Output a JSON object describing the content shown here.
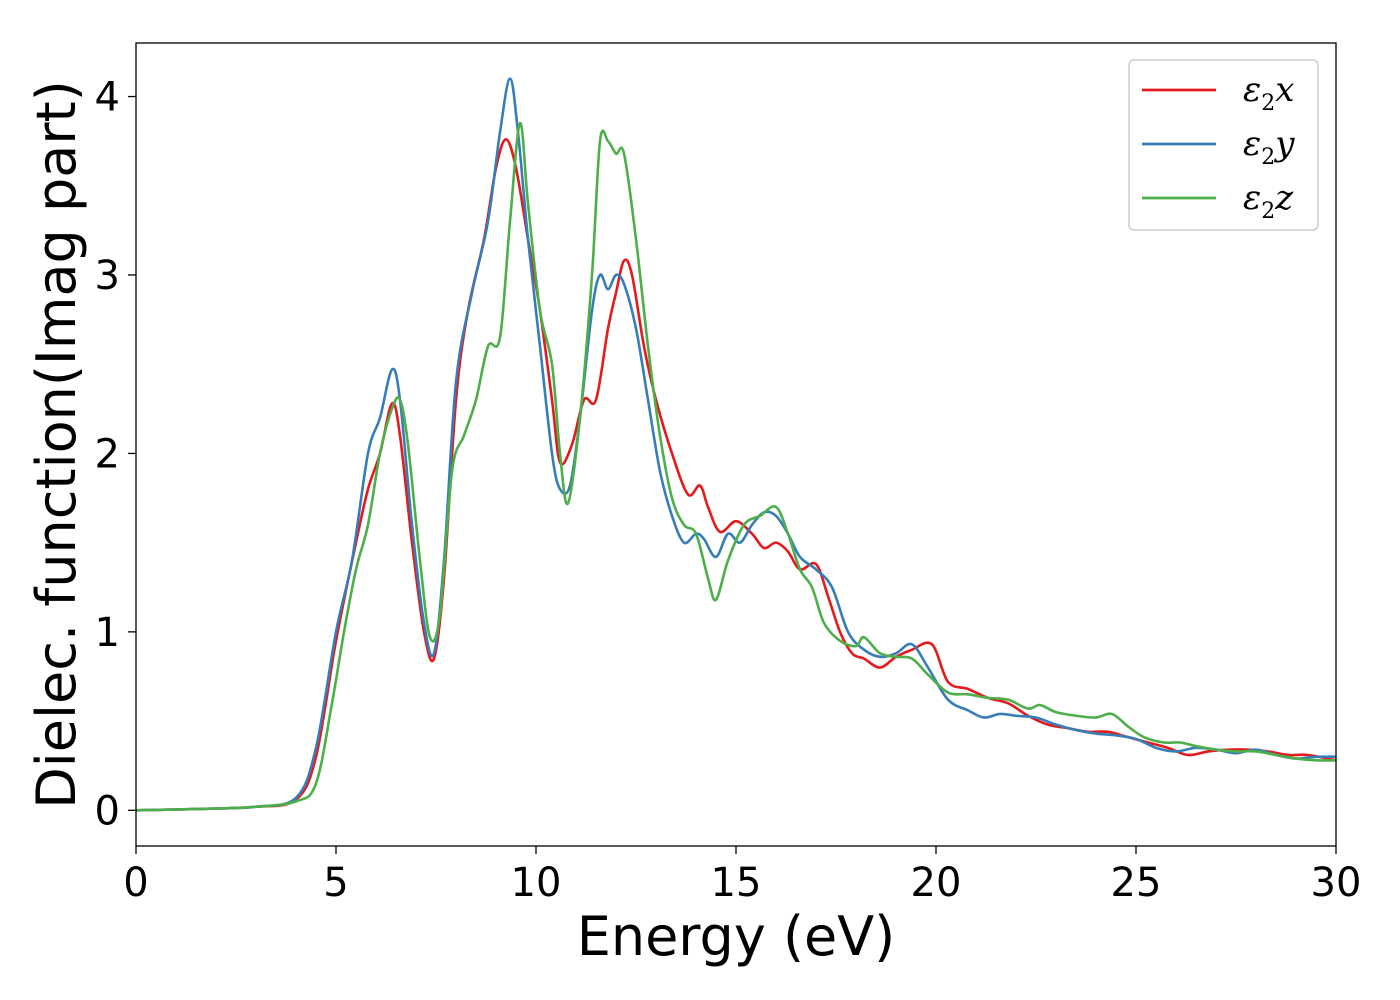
{
  "chart_data": {
    "type": "line",
    "title": "",
    "xlabel": "Energy (eV)",
    "ylabel": "Dielec. function(Imag part)",
    "xlim": [
      0,
      30
    ],
    "ylim": [
      -0.2,
      4.3
    ],
    "xticks": [
      0,
      5,
      10,
      15,
      20,
      25,
      30
    ],
    "xtick_labels": [
      "0",
      "5",
      "10",
      "15",
      "20",
      "25",
      "30"
    ],
    "yticks": [
      0,
      1,
      2,
      3,
      4
    ],
    "ytick_labels": [
      "0",
      "1",
      "2",
      "3",
      "4"
    ],
    "grid": false,
    "legend": "top-right",
    "series": [
      {
        "name": "ε₂x",
        "legend": {
          "base": "ε",
          "sub": "2",
          "axis": "x"
        },
        "color": "#e41a1c",
        "points": [
          [
            0,
            0
          ],
          [
            2,
            0.01
          ],
          [
            3,
            0.02
          ],
          [
            4,
            0.06
          ],
          [
            4.5,
            0.3
          ],
          [
            5,
            0.95
          ],
          [
            5.5,
            1.5
          ],
          [
            5.8,
            1.8
          ],
          [
            6.1,
            2.0
          ],
          [
            6.4,
            2.28
          ],
          [
            6.6,
            2.1
          ],
          [
            6.9,
            1.5
          ],
          [
            7.2,
            1.0
          ],
          [
            7.45,
            0.85
          ],
          [
            7.7,
            1.3
          ],
          [
            8.0,
            2.3
          ],
          [
            8.3,
            2.8
          ],
          [
            8.7,
            3.2
          ],
          [
            9.0,
            3.6
          ],
          [
            9.25,
            3.76
          ],
          [
            9.5,
            3.6
          ],
          [
            9.8,
            3.2
          ],
          [
            10.1,
            2.8
          ],
          [
            10.4,
            2.3
          ],
          [
            10.6,
            1.95
          ],
          [
            10.9,
            2.05
          ],
          [
            11.2,
            2.3
          ],
          [
            11.5,
            2.3
          ],
          [
            11.8,
            2.7
          ],
          [
            12.0,
            2.9
          ],
          [
            12.2,
            3.08
          ],
          [
            12.4,
            3.0
          ],
          [
            12.7,
            2.6
          ],
          [
            13.0,
            2.3
          ],
          [
            13.4,
            2.0
          ],
          [
            13.8,
            1.77
          ],
          [
            14.1,
            1.82
          ],
          [
            14.3,
            1.7
          ],
          [
            14.6,
            1.56
          ],
          [
            15.0,
            1.62
          ],
          [
            15.4,
            1.55
          ],
          [
            15.7,
            1.47
          ],
          [
            16.0,
            1.5
          ],
          [
            16.3,
            1.45
          ],
          [
            16.6,
            1.35
          ],
          [
            17.0,
            1.38
          ],
          [
            17.3,
            1.2
          ],
          [
            17.6,
            1.0
          ],
          [
            17.9,
            0.88
          ],
          [
            18.2,
            0.85
          ],
          [
            18.6,
            0.8
          ],
          [
            19.0,
            0.86
          ],
          [
            19.4,
            0.9
          ],
          [
            19.9,
            0.93
          ],
          [
            20.3,
            0.72
          ],
          [
            20.8,
            0.68
          ],
          [
            21.3,
            0.63
          ],
          [
            21.8,
            0.6
          ],
          [
            22.3,
            0.53
          ],
          [
            22.8,
            0.48
          ],
          [
            23.3,
            0.46
          ],
          [
            23.8,
            0.44
          ],
          [
            24.3,
            0.44
          ],
          [
            24.8,
            0.41
          ],
          [
            25.3,
            0.38
          ],
          [
            25.8,
            0.35
          ],
          [
            26.3,
            0.31
          ],
          [
            26.8,
            0.33
          ],
          [
            27.3,
            0.34
          ],
          [
            27.8,
            0.34
          ],
          [
            28.3,
            0.33
          ],
          [
            28.8,
            0.31
          ],
          [
            29.3,
            0.31
          ],
          [
            30,
            0.28
          ]
        ]
      },
      {
        "name": "ε₂y",
        "legend": {
          "base": "ε",
          "sub": "2",
          "axis": "y"
        },
        "color": "#377eb8",
        "points": [
          [
            0,
            0
          ],
          [
            2,
            0.01
          ],
          [
            3,
            0.02
          ],
          [
            4,
            0.07
          ],
          [
            4.5,
            0.35
          ],
          [
            5,
            1.0
          ],
          [
            5.4,
            1.4
          ],
          [
            5.8,
            2.0
          ],
          [
            6.1,
            2.2
          ],
          [
            6.4,
            2.47
          ],
          [
            6.6,
            2.3
          ],
          [
            6.9,
            1.6
          ],
          [
            7.2,
            1.05
          ],
          [
            7.45,
            0.88
          ],
          [
            7.7,
            1.4
          ],
          [
            8.0,
            2.4
          ],
          [
            8.4,
            2.9
          ],
          [
            8.8,
            3.3
          ],
          [
            9.1,
            3.8
          ],
          [
            9.35,
            4.1
          ],
          [
            9.55,
            3.8
          ],
          [
            9.8,
            3.2
          ],
          [
            10.1,
            2.6
          ],
          [
            10.4,
            2.0
          ],
          [
            10.6,
            1.8
          ],
          [
            10.85,
            1.82
          ],
          [
            11.1,
            2.2
          ],
          [
            11.4,
            2.8
          ],
          [
            11.6,
            3.0
          ],
          [
            11.8,
            2.92
          ],
          [
            12.0,
            3.0
          ],
          [
            12.2,
            2.95
          ],
          [
            12.5,
            2.7
          ],
          [
            12.8,
            2.3
          ],
          [
            13.1,
            1.9
          ],
          [
            13.4,
            1.65
          ],
          [
            13.7,
            1.5
          ],
          [
            14.0,
            1.55
          ],
          [
            14.2,
            1.52
          ],
          [
            14.5,
            1.42
          ],
          [
            14.8,
            1.55
          ],
          [
            15.1,
            1.5
          ],
          [
            15.4,
            1.6
          ],
          [
            15.7,
            1.67
          ],
          [
            16.0,
            1.65
          ],
          [
            16.3,
            1.55
          ],
          [
            16.6,
            1.42
          ],
          [
            17.0,
            1.35
          ],
          [
            17.4,
            1.25
          ],
          [
            17.8,
            1.0
          ],
          [
            18.2,
            0.9
          ],
          [
            18.6,
            0.86
          ],
          [
            19.0,
            0.88
          ],
          [
            19.4,
            0.93
          ],
          [
            19.8,
            0.8
          ],
          [
            20.3,
            0.62
          ],
          [
            20.8,
            0.56
          ],
          [
            21.2,
            0.52
          ],
          [
            21.6,
            0.54
          ],
          [
            22.0,
            0.53
          ],
          [
            22.5,
            0.52
          ],
          [
            23.0,
            0.48
          ],
          [
            23.5,
            0.45
          ],
          [
            24.0,
            0.43
          ],
          [
            24.5,
            0.42
          ],
          [
            25.0,
            0.4
          ],
          [
            25.5,
            0.35
          ],
          [
            26.0,
            0.33
          ],
          [
            26.5,
            0.35
          ],
          [
            27.0,
            0.34
          ],
          [
            27.5,
            0.32
          ],
          [
            28.0,
            0.34
          ],
          [
            28.5,
            0.31
          ],
          [
            29.0,
            0.29
          ],
          [
            29.5,
            0.3
          ],
          [
            30,
            0.3
          ]
        ]
      },
      {
        "name": "ε₂z",
        "legend": {
          "base": "ε",
          "sub": "2",
          "axis": "z"
        },
        "color": "#4daf4a",
        "points": [
          [
            0,
            0
          ],
          [
            2,
            0.01
          ],
          [
            3,
            0.02
          ],
          [
            4,
            0.05
          ],
          [
            4.5,
            0.15
          ],
          [
            4.9,
            0.6
          ],
          [
            5.2,
            1.0
          ],
          [
            5.5,
            1.35
          ],
          [
            5.8,
            1.6
          ],
          [
            6.1,
            2.0
          ],
          [
            6.4,
            2.25
          ],
          [
            6.6,
            2.3
          ],
          [
            6.8,
            2.05
          ],
          [
            7.1,
            1.4
          ],
          [
            7.35,
            0.97
          ],
          [
            7.6,
            1.1
          ],
          [
            7.9,
            1.9
          ],
          [
            8.2,
            2.1
          ],
          [
            8.5,
            2.3
          ],
          [
            8.8,
            2.6
          ],
          [
            9.1,
            2.65
          ],
          [
            9.35,
            3.3
          ],
          [
            9.6,
            3.85
          ],
          [
            9.8,
            3.4
          ],
          [
            10.1,
            2.8
          ],
          [
            10.4,
            2.5
          ],
          [
            10.6,
            2.0
          ],
          [
            10.8,
            1.72
          ],
          [
            11.1,
            2.2
          ],
          [
            11.4,
            3.0
          ],
          [
            11.6,
            3.75
          ],
          [
            11.8,
            3.75
          ],
          [
            12.0,
            3.68
          ],
          [
            12.2,
            3.68
          ],
          [
            12.5,
            3.2
          ],
          [
            12.8,
            2.6
          ],
          [
            13.1,
            2.1
          ],
          [
            13.4,
            1.75
          ],
          [
            13.7,
            1.6
          ],
          [
            14.0,
            1.55
          ],
          [
            14.3,
            1.3
          ],
          [
            14.5,
            1.18
          ],
          [
            14.8,
            1.4
          ],
          [
            15.2,
            1.6
          ],
          [
            15.6,
            1.65
          ],
          [
            16.0,
            1.7
          ],
          [
            16.3,
            1.55
          ],
          [
            16.6,
            1.35
          ],
          [
            16.9,
            1.25
          ],
          [
            17.2,
            1.05
          ],
          [
            17.6,
            0.95
          ],
          [
            18.0,
            0.92
          ],
          [
            18.2,
            0.97
          ],
          [
            18.6,
            0.88
          ],
          [
            19.0,
            0.86
          ],
          [
            19.4,
            0.85
          ],
          [
            19.8,
            0.76
          ],
          [
            20.3,
            0.66
          ],
          [
            20.8,
            0.65
          ],
          [
            21.3,
            0.63
          ],
          [
            21.8,
            0.62
          ],
          [
            22.3,
            0.57
          ],
          [
            22.6,
            0.59
          ],
          [
            23.0,
            0.55
          ],
          [
            23.5,
            0.53
          ],
          [
            24.0,
            0.52
          ],
          [
            24.4,
            0.54
          ],
          [
            24.8,
            0.47
          ],
          [
            25.2,
            0.41
          ],
          [
            25.7,
            0.38
          ],
          [
            26.1,
            0.38
          ],
          [
            26.5,
            0.36
          ],
          [
            27.0,
            0.34
          ],
          [
            27.5,
            0.33
          ],
          [
            28.0,
            0.33
          ],
          [
            28.5,
            0.31
          ],
          [
            29.0,
            0.29
          ],
          [
            29.5,
            0.28
          ],
          [
            30,
            0.28
          ]
        ]
      }
    ]
  }
}
